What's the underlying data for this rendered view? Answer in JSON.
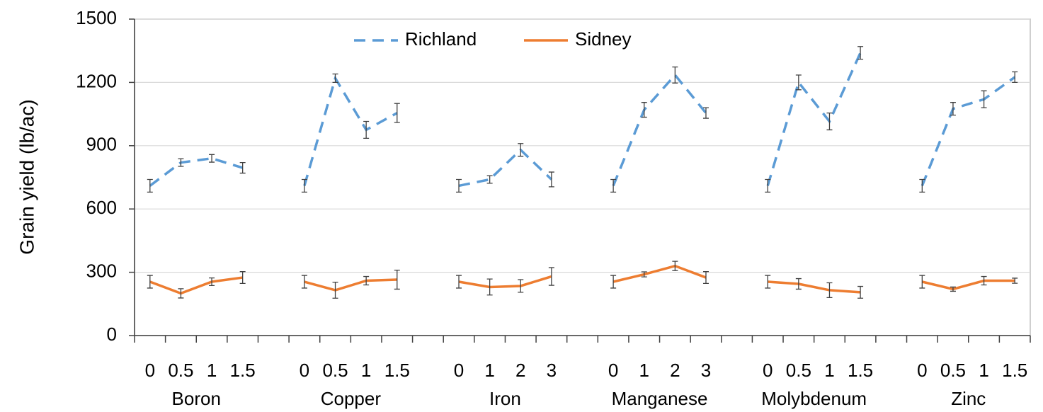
{
  "chart_data": {
    "type": "line",
    "y_label": "Grain yield (lb/ac)",
    "categories": [
      "0",
      "0.5",
      "1",
      "1.5",
      null,
      "0",
      "0.5",
      "1",
      "1.5",
      null,
      "0",
      "1",
      "2",
      "3",
      null,
      "0",
      "1",
      "2",
      "3",
      null,
      "0",
      "0.5",
      "1",
      "1.5",
      null,
      "0",
      "0.5",
      "1",
      "1.5"
    ],
    "groups": [
      "Boron",
      "Copper",
      "Iron",
      "Manganese",
      "Molybdenum",
      "Zinc"
    ],
    "series": [
      {
        "name": "Richland",
        "color": "#5b9bd5",
        "dash": true,
        "values": [
          710,
          820,
          840,
          795,
          null,
          710,
          1220,
          975,
          1055,
          null,
          710,
          740,
          880,
          740,
          null,
          710,
          1070,
          1235,
          1055,
          null,
          710,
          1200,
          1015,
          1340,
          null,
          710,
          1075,
          1120,
          1225
        ],
        "errors": [
          30,
          18,
          18,
          25,
          null,
          30,
          20,
          40,
          45,
          null,
          30,
          18,
          30,
          35,
          null,
          30,
          35,
          38,
          25,
          null,
          30,
          35,
          40,
          30,
          null,
          30,
          30,
          40,
          25
        ]
      },
      {
        "name": "Sidney",
        "color": "#ed7d31",
        "dash": false,
        "values": [
          255,
          200,
          255,
          275,
          null,
          255,
          215,
          260,
          265,
          null,
          255,
          230,
          235,
          280,
          null,
          255,
          290,
          330,
          275,
          null,
          255,
          245,
          215,
          205,
          null,
          255,
          220,
          260,
          260
        ],
        "errors": [
          30,
          22,
          18,
          28,
          null,
          30,
          38,
          20,
          45,
          null,
          30,
          38,
          30,
          42,
          null,
          30,
          12,
          22,
          28,
          null,
          30,
          25,
          35,
          28,
          null,
          30,
          10,
          20,
          12
        ]
      }
    ],
    "ylim": [
      0,
      1500
    ],
    "yticks": [
      0,
      300,
      600,
      900,
      1200,
      1500
    ],
    "grid": true
  }
}
